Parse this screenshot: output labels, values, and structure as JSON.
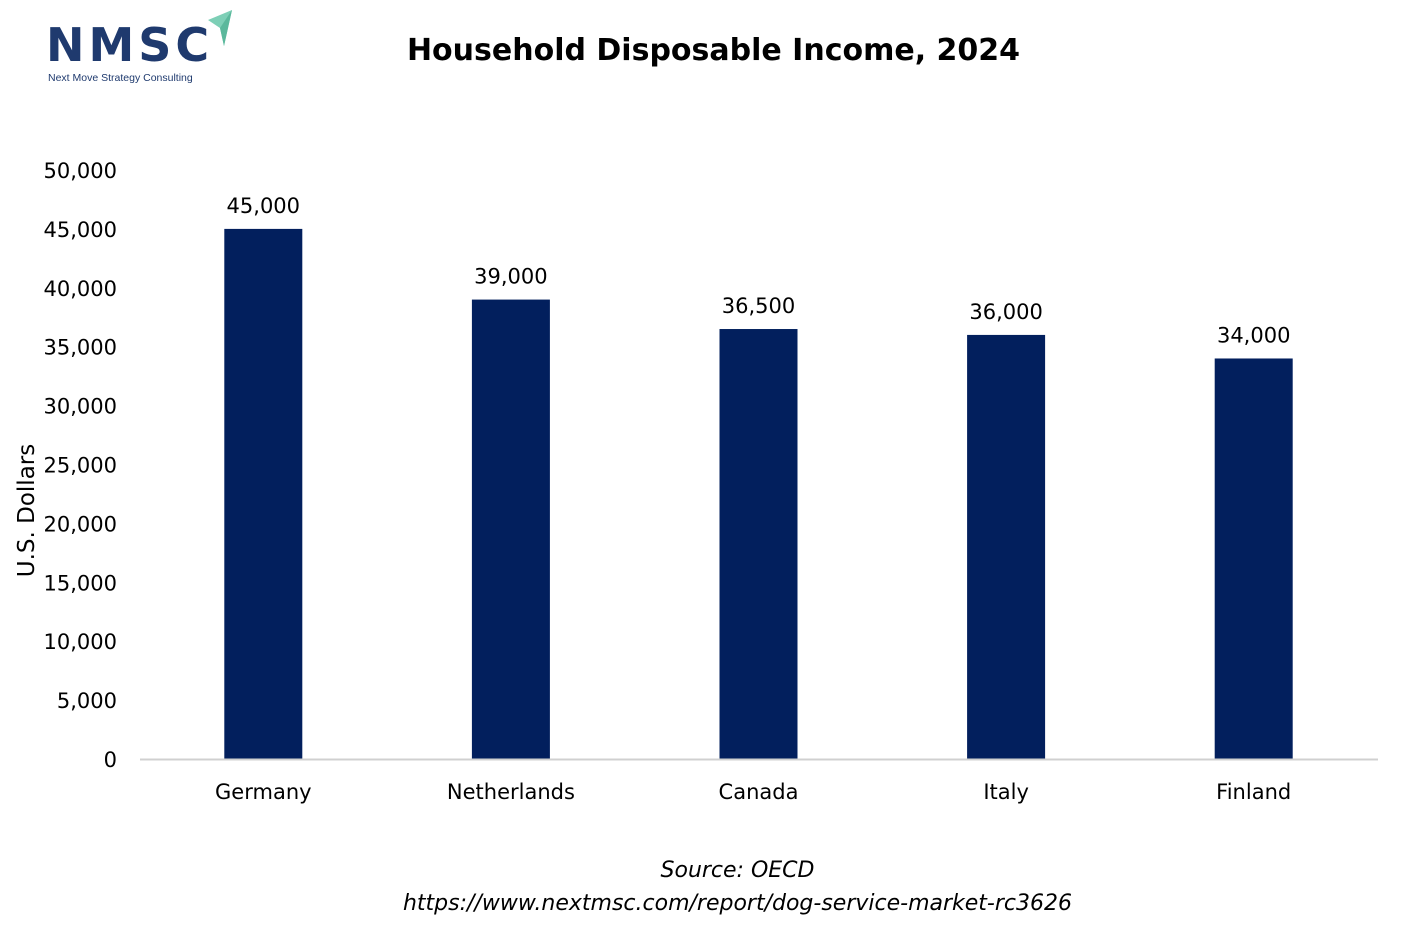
{
  "logo": {
    "name": "NMSC",
    "tagline": "Next Move Strategy Consulting"
  },
  "source": {
    "line1": "Source: OECD",
    "line2": "https://www.nextmsc.com/report/dog-service-market-rc3626"
  },
  "colors": {
    "bar": "#021f5d",
    "axis": "#d0d0d0",
    "logo_text": "#1f3a6e",
    "logo_arrow": "#7dcfb6"
  },
  "chart_data": {
    "type": "bar",
    "title": "Household Disposable Income, 2024",
    "xlabel": "",
    "ylabel": "U.S. Dollars",
    "categories": [
      "Germany",
      "Netherlands",
      "Canada",
      "Italy",
      "Finland"
    ],
    "values": [
      45000,
      39000,
      36500,
      36000,
      34000
    ],
    "data_labels": [
      "45,000",
      "39,000",
      "36,500",
      "36,000",
      "34,000"
    ],
    "ylim": [
      0,
      50000
    ],
    "yticks": [
      0,
      5000,
      10000,
      15000,
      20000,
      25000,
      30000,
      35000,
      40000,
      45000,
      50000
    ],
    "ytick_labels": [
      "0",
      "5,000",
      "10,000",
      "15,000",
      "20,000",
      "25,000",
      "30,000",
      "35,000",
      "40,000",
      "45,000",
      "50,000"
    ],
    "grid": false,
    "legend": "none"
  }
}
